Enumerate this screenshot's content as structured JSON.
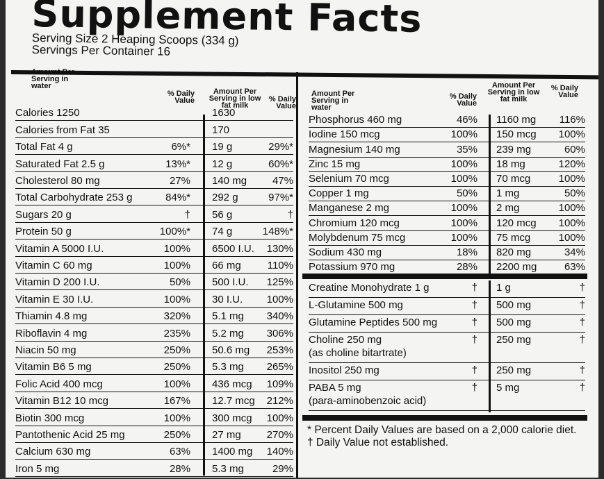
{
  "title": "Supplement Facts",
  "serving_size": "Serving Size 2 Heaping Scoops (334 g)",
  "servings_per_container": "Servings Per Container 16",
  "headers": {
    "water": "Amount Per Serving in water",
    "daily_value": "% Daily Value",
    "milk": "Amount Per Serving in low fat milk",
    "daily_value2": "% Daily Value"
  },
  "left_rows": [
    {
      "name": "Calories 1250",
      "dv": "",
      "milk": "1630",
      "milk_dv": ""
    },
    {
      "name": "Calories from Fat 35",
      "dv": "",
      "milk": "170",
      "milk_dv": ""
    },
    {
      "name": "Total Fat 4 g",
      "dv": "6%*",
      "milk": "19 g",
      "milk_dv": "29%*"
    },
    {
      "name": "Saturated Fat 2.5 g",
      "dv": "13%*",
      "milk": "12 g",
      "milk_dv": "60%*"
    },
    {
      "name": "Cholesterol 80 mg",
      "dv": "27%",
      "milk": "140 mg",
      "milk_dv": "47%"
    },
    {
      "name": "Total Carbohydrate 253 g",
      "dv": "84%*",
      "milk": "292 g",
      "milk_dv": "97%*"
    },
    {
      "name": "Sugars 20 g",
      "dv": "†",
      "milk": "56 g",
      "milk_dv": "†"
    },
    {
      "name": "Protein 50 g",
      "dv": "100%*",
      "milk": "74 g",
      "milk_dv": "148%*"
    },
    {
      "name": "Vitamin A 5000 I.U.",
      "dv": "100%",
      "milk": "6500 I.U.",
      "milk_dv": "130%"
    },
    {
      "name": "Vitamin C 60 mg",
      "dv": "100%",
      "milk": "66 mg",
      "milk_dv": "110%"
    },
    {
      "name": "Vitamin D 200 I.U.",
      "dv": "50%",
      "milk": "500 I.U.",
      "milk_dv": "125%"
    },
    {
      "name": "Vitamin E 30 I.U.",
      "dv": "100%",
      "milk": "30 I.U.",
      "milk_dv": "100%"
    },
    {
      "name": "Thiamin 4.8 mg",
      "dv": "320%",
      "milk": "5.1 mg",
      "milk_dv": "340%"
    },
    {
      "name": "Riboflavin 4 mg",
      "dv": "235%",
      "milk": "5.2 mg",
      "milk_dv": "306%"
    },
    {
      "name": "Niacin 50 mg",
      "dv": "250%",
      "milk": "50.6 mg",
      "milk_dv": "253%"
    },
    {
      "name": "Vitamin B6 5 mg",
      "dv": "250%",
      "milk": "5.3 mg",
      "milk_dv": "265%"
    },
    {
      "name": "Folic Acid 400 mcg",
      "dv": "100%",
      "milk": "436 mcg",
      "milk_dv": "109%"
    },
    {
      "name": "Vitamin B12 10 mcg",
      "dv": "167%",
      "milk": "12.7 mcg",
      "milk_dv": "212%"
    },
    {
      "name": "Biotin 300 mcg",
      "dv": "100%",
      "milk": "300 mcg",
      "milk_dv": "100%"
    },
    {
      "name": "Pantothenic Acid 25 mg",
      "dv": "250%",
      "milk": "27 mg",
      "milk_dv": "270%"
    },
    {
      "name": "Calcium 630 mg",
      "dv": "63%",
      "milk": "1400 mg",
      "milk_dv": "140%"
    },
    {
      "name": "Iron 5 mg",
      "dv": "28%",
      "milk": "5.3 mg",
      "milk_dv": "29%"
    }
  ],
  "right_rows": [
    {
      "name": "Phosphorus 460 mg",
      "dv": "46%",
      "milk": "1160 mg",
      "milk_dv": "116%"
    },
    {
      "name": "Iodine 150 mcg",
      "dv": "100%",
      "milk": "150 mcg",
      "milk_dv": "100%"
    },
    {
      "name": "Magnesium 140 mg",
      "dv": "35%",
      "milk": "239 mg",
      "milk_dv": "60%"
    },
    {
      "name": "Zinc 15 mg",
      "dv": "100%",
      "milk": "18 mg",
      "milk_dv": "120%"
    },
    {
      "name": "Selenium 70 mcg",
      "dv": "100%",
      "milk": "70 mcg",
      "milk_dv": "100%"
    },
    {
      "name": "Copper 1 mg",
      "dv": "50%",
      "milk": "1 mg",
      "milk_dv": "50%"
    },
    {
      "name": "Manganese 2 mg",
      "dv": "100%",
      "milk": "2 mg",
      "milk_dv": "100%"
    },
    {
      "name": "Chromium 120 mcg",
      "dv": "100%",
      "milk": "120 mcg",
      "milk_dv": "100%"
    },
    {
      "name": "Molybdenum 75 mcg",
      "dv": "100%",
      "milk": "75 mcg",
      "milk_dv": "100%"
    },
    {
      "name": "Sodium 430 mg",
      "dv": "18%",
      "milk": "820 mg",
      "milk_dv": "34%"
    },
    {
      "name": "Potassium 970 mg",
      "dv": "28%",
      "milk": "2200 mg",
      "milk_dv": "63%"
    }
  ],
  "other_rows": [
    {
      "name": "Creatine Monohydrate 1 g",
      "sub": "",
      "dv": "†",
      "milk": "1 g",
      "milk_dv": "†"
    },
    {
      "name": "L-Glutamine 500 mg",
      "sub": "",
      "dv": "†",
      "milk": "500 mg",
      "milk_dv": "†"
    },
    {
      "name": "Glutamine Peptides 500 mg",
      "sub": "",
      "dv": "†",
      "milk": "500 mg",
      "milk_dv": "†"
    },
    {
      "name": "Choline 250 mg",
      "sub": "(as choline bitartrate)",
      "dv": "†",
      "milk": "250 mg",
      "milk_dv": "†"
    },
    {
      "name": "Inositol 250 mg",
      "sub": "",
      "dv": "†",
      "milk": "250 mg",
      "milk_dv": "†"
    },
    {
      "name": "PABA 5 mg",
      "sub": "(para-aminobenzoic acid)",
      "dv": "†",
      "milk": "5 mg",
      "milk_dv": "†"
    }
  ],
  "footnotes": {
    "percent": "* Percent Daily Values are based on a 2,000 calorie diet.",
    "dagger": "† Daily Value not established."
  }
}
